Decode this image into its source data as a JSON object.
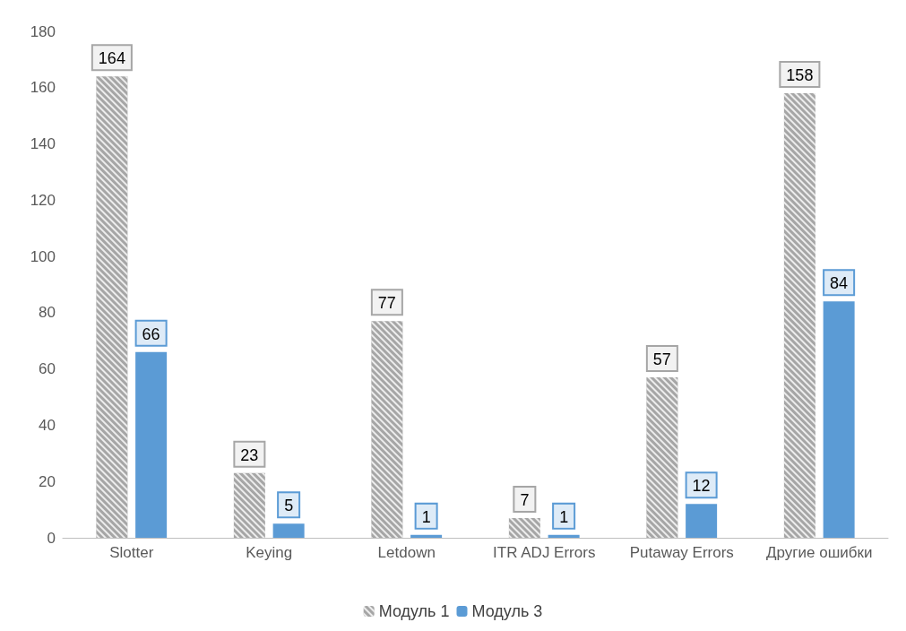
{
  "chart_data": {
    "type": "bar",
    "categories": [
      "Slotter",
      "Keying",
      "Letdown",
      "ITR ADJ Errors",
      "Putaway Errors",
      "Другие ошибки"
    ],
    "series": [
      {
        "name": "Модуль 1",
        "color": "#a6a6a6",
        "values": [
          164,
          23,
          77,
          7,
          57,
          158
        ]
      },
      {
        "name": "Модуль 3",
        "color": "#5b9bd5",
        "values": [
          66,
          5,
          1,
          1,
          12,
          84
        ]
      }
    ],
    "ylim": [
      0,
      180
    ],
    "yticks": [
      0,
      20,
      40,
      60,
      80,
      100,
      120,
      140,
      160,
      180
    ],
    "grid": false,
    "legend": "bottom",
    "data_labels": true
  }
}
